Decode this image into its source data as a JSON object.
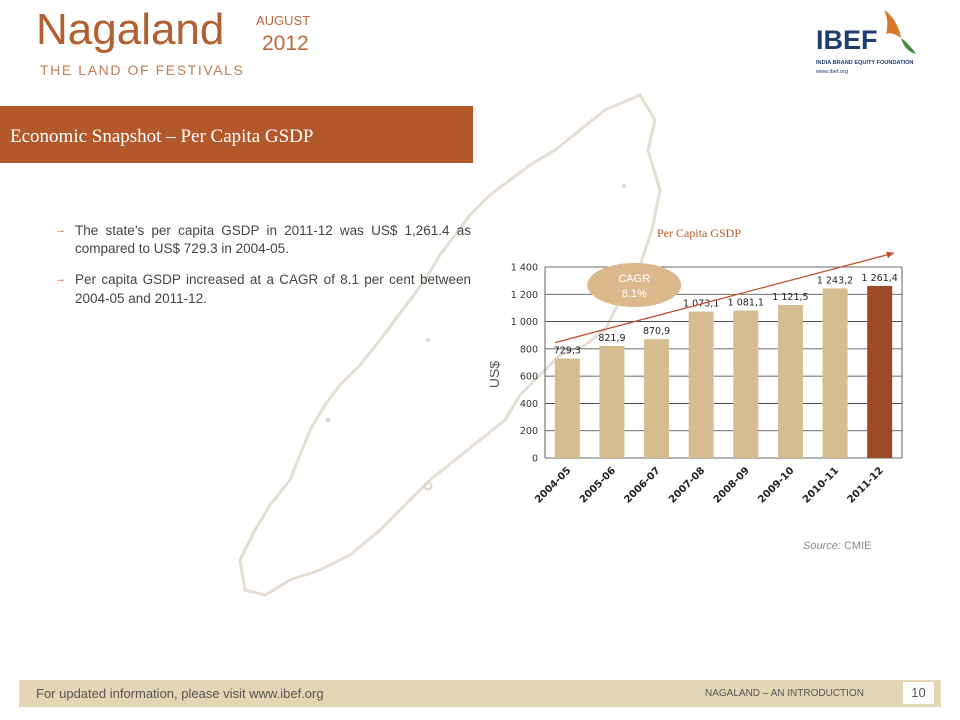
{
  "header": {
    "title": "Nagaland",
    "month": "AUGUST",
    "year": "2012",
    "tagline": "THE LAND OF FESTIVALS",
    "logo": {
      "brand": "IBEF",
      "subtitle": "INDIA BRAND EQUITY FOUNDATION",
      "url": "www.ibef.org"
    }
  },
  "banner": {
    "text": "Economic Snapshot – Per Capita GSDP"
  },
  "bullets": [
    "The state’s per capita GSDP in 2011-12 was US$ 1,261.4 as compared to US$ 729.3 in 2004-05.",
    "Per capita GSDP increased at a CAGR of 8.1 per cent between 2004-05 and 2011-12."
  ],
  "chart_title": "Per Capita GSDP",
  "source_label": "Source:",
  "source_name": "CMIE",
  "footer": {
    "link_text": "For updated information, please visit www.ibef.org",
    "right_text": "NAGALAND – AN INTRODUCTION",
    "page": "10"
  },
  "colors": {
    "accent": "#b3582a",
    "bar": "#d5bd8f",
    "bar_highlight": "#9c4a26",
    "cagr_bubble": "#dcb98d",
    "footer": "#e3d6b5"
  },
  "chart_data": {
    "type": "bar",
    "title": "Per Capita GSDP",
    "ylabel": "US$",
    "xlabel": "",
    "categories": [
      "2004-05",
      "2005-06",
      "2006-07",
      "2007-08",
      "2008-09",
      "2009-10",
      "2010-11",
      "2011-12"
    ],
    "values": [
      729.3,
      821.9,
      870.9,
      1073.1,
      1081.1,
      1121.5,
      1243.2,
      1261.4
    ],
    "value_labels": [
      "729,3",
      "821,9",
      "870,9",
      "1 073,1",
      "1 081,1",
      "1 121,5",
      "1 243,2",
      "1 261,4"
    ],
    "ylim": [
      0,
      1400
    ],
    "yticks": [
      0,
      200,
      400,
      600,
      800,
      1000,
      1200,
      1400
    ],
    "ytick_labels": [
      "0",
      "200",
      "400",
      "600",
      "800",
      "1 000",
      "1 200",
      "1 400"
    ],
    "highlight_index": 7,
    "grid": true,
    "annotation": {
      "line1": "CAGR",
      "line2": "8.1%"
    }
  }
}
